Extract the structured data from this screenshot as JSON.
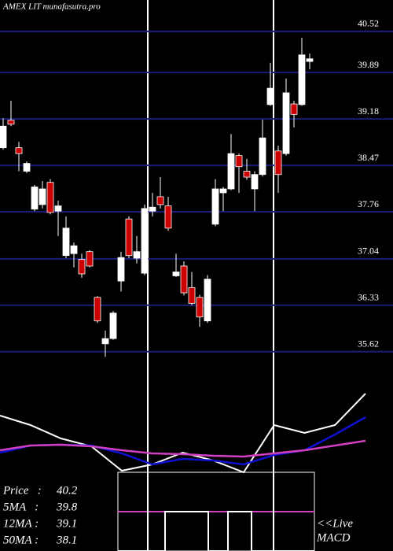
{
  "chart_data": {
    "type": "candlestick",
    "title": "AMEX  LIT munafasutra.pro",
    "ylim": [
      35.34,
      41.0
    ],
    "yticks": [
      40.52,
      39.89,
      39.18,
      38.47,
      37.76,
      37.04,
      36.33,
      35.62
    ],
    "grid": true,
    "up_color": "#ffffff",
    "down_color": "#cc0000",
    "open": [
      38.74,
      39.16,
      38.74,
      38.38,
      37.8,
      37.87,
      38.21,
      37.77,
      37.09,
      37.12,
      37.03,
      37.15,
      36.45,
      35.74,
      35.82,
      36.7,
      37.65,
      37.05,
      36.82,
      37.77,
      37.99,
      37.85,
      36.78,
      36.93,
      36.6,
      36.45,
      36.09,
      37.57,
      38.05,
      38.11,
      38.62,
      38.38,
      38.11,
      38.33,
      39.4,
      38.69,
      38.65,
      39.41,
      39.4,
      40.06
    ],
    "high": [
      39.19,
      39.46,
      38.83,
      38.53,
      38.17,
      38.23,
      38.26,
      37.93,
      37.69,
      37.29,
      37.12,
      37.17,
      36.47,
      35.94,
      36.24,
      37.15,
      37.69,
      37.39,
      37.87,
      38.05,
      38.29,
      37.99,
      37.12,
      37.0,
      36.84,
      36.49,
      36.79,
      38.26,
      38.14,
      38.95,
      38.65,
      38.57,
      38.38,
      39.17,
      40.04,
      38.77,
      39.8,
      39.46,
      40.42,
      40.18
    ],
    "low": [
      38.71,
      39.07,
      38.38,
      38.35,
      37.77,
      37.81,
      37.72,
      37.39,
      37.05,
      36.91,
      36.75,
      36.91,
      36.06,
      35.54,
      35.8,
      36.54,
      37.05,
      36.97,
      36.79,
      37.69,
      37.81,
      37.47,
      36.76,
      36.48,
      36.33,
      36.0,
      36.06,
      37.54,
      37.77,
      38.09,
      38.05,
      38.25,
      37.77,
      38.3,
      39.38,
      38.05,
      38.62,
      39.05,
      39.38,
      39.94
    ],
    "close": [
      39.07,
      39.1,
      38.65,
      38.5,
      38.14,
      38.11,
      37.75,
      37.85,
      37.51,
      37.24,
      36.81,
      36.93,
      36.09,
      35.82,
      36.21,
      37.06,
      37.09,
      37.15,
      37.81,
      37.83,
      37.87,
      37.51,
      36.84,
      36.52,
      36.36,
      36.15,
      36.73,
      38.11,
      38.11,
      38.65,
      38.45,
      38.29,
      38.33,
      38.89,
      39.65,
      38.33,
      39.58,
      39.25,
      40.16,
      40.1
    ],
    "indicator": {
      "ylim": [
        0,
        120
      ],
      "series": [
        {
          "color": "#ffffff",
          "values": [
            82,
            70,
            53,
            43,
            12,
            20,
            35,
            25,
            10,
            70,
            60,
            70,
            110
          ]
        },
        {
          "color": "#1010d0",
          "values": [
            35,
            44,
            45,
            44,
            34,
            20,
            27,
            25,
            20,
            32,
            38,
            58,
            80
          ]
        },
        {
          "color": "#d040c0",
          "values": [
            38,
            44,
            45,
            43,
            38,
            34,
            33,
            31,
            30,
            34,
            38,
            44,
            50
          ]
        }
      ]
    },
    "info": [
      {
        "label": "Price   :",
        "value": 40.2
      },
      {
        "label": "5MA   :",
        "value": 39.8
      },
      {
        "label": "12MA :",
        "value": 39.1
      },
      {
        "label": "50MA :",
        "value": 38.1
      }
    ],
    "live": "<<Live",
    "macd": "MACD"
  }
}
